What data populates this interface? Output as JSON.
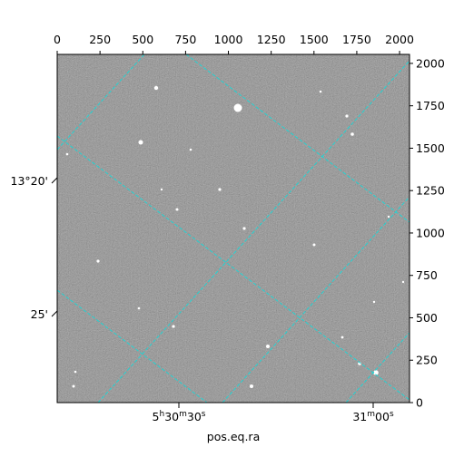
{
  "chart_data": {
    "type": "image",
    "xlabel": "pos.eq.ra",
    "xlim": [
      0,
      2058
    ],
    "ylim": [
      0,
      2053
    ],
    "xticks": [
      0,
      250,
      500,
      750,
      1000,
      1250,
      1500,
      1750,
      2000
    ],
    "yticks": [
      0,
      250,
      500,
      750,
      1000,
      1250,
      1500,
      1750,
      2000
    ],
    "ra_ticks": [
      [
        "5",
        "h",
        "30",
        "m",
        "30",
        "s"
      ],
      [
        "31",
        "m",
        "00",
        "s"
      ]
    ],
    "dec_ticks": [
      "13°20'",
      "25'"
    ]
  }
}
